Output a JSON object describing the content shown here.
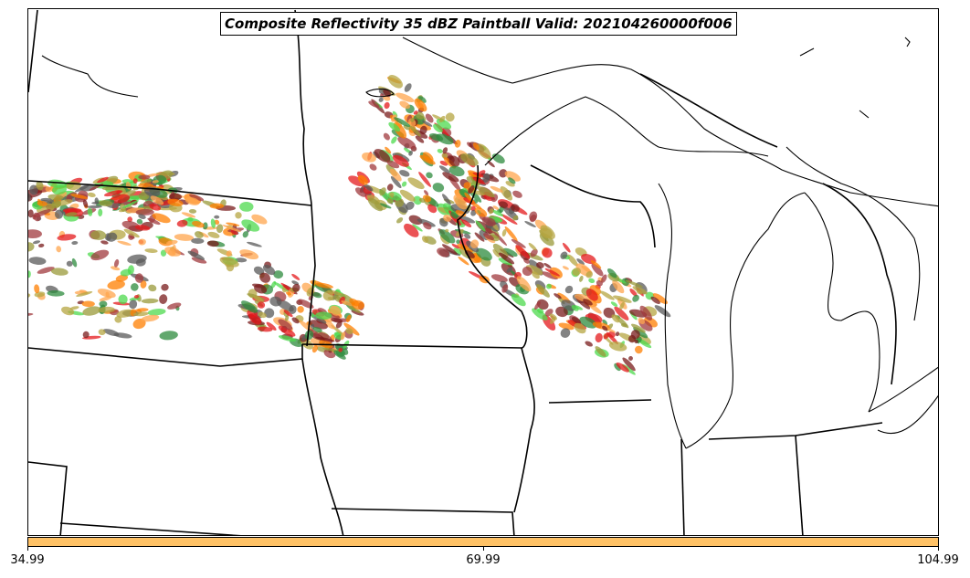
{
  "title": "Composite Reflectivity 35 dBZ Paintball Valid: 202104260000f006",
  "colorbar": {
    "color": "#ffc266",
    "ticks": [
      "34.99",
      "69.99",
      "104.99"
    ]
  },
  "paintball_colors": [
    "#a0393d",
    "#e41a1c",
    "#ff7f00",
    "#ffa64d",
    "#4dd94d",
    "#2e8b3d",
    "#9a9a3a",
    "#b5a642",
    "#5a5a5a",
    "#7a1c1c"
  ],
  "map": {
    "features": [
      "state-borders",
      "great-lakes-coastline",
      "reflectivity-paintball"
    ]
  }
}
